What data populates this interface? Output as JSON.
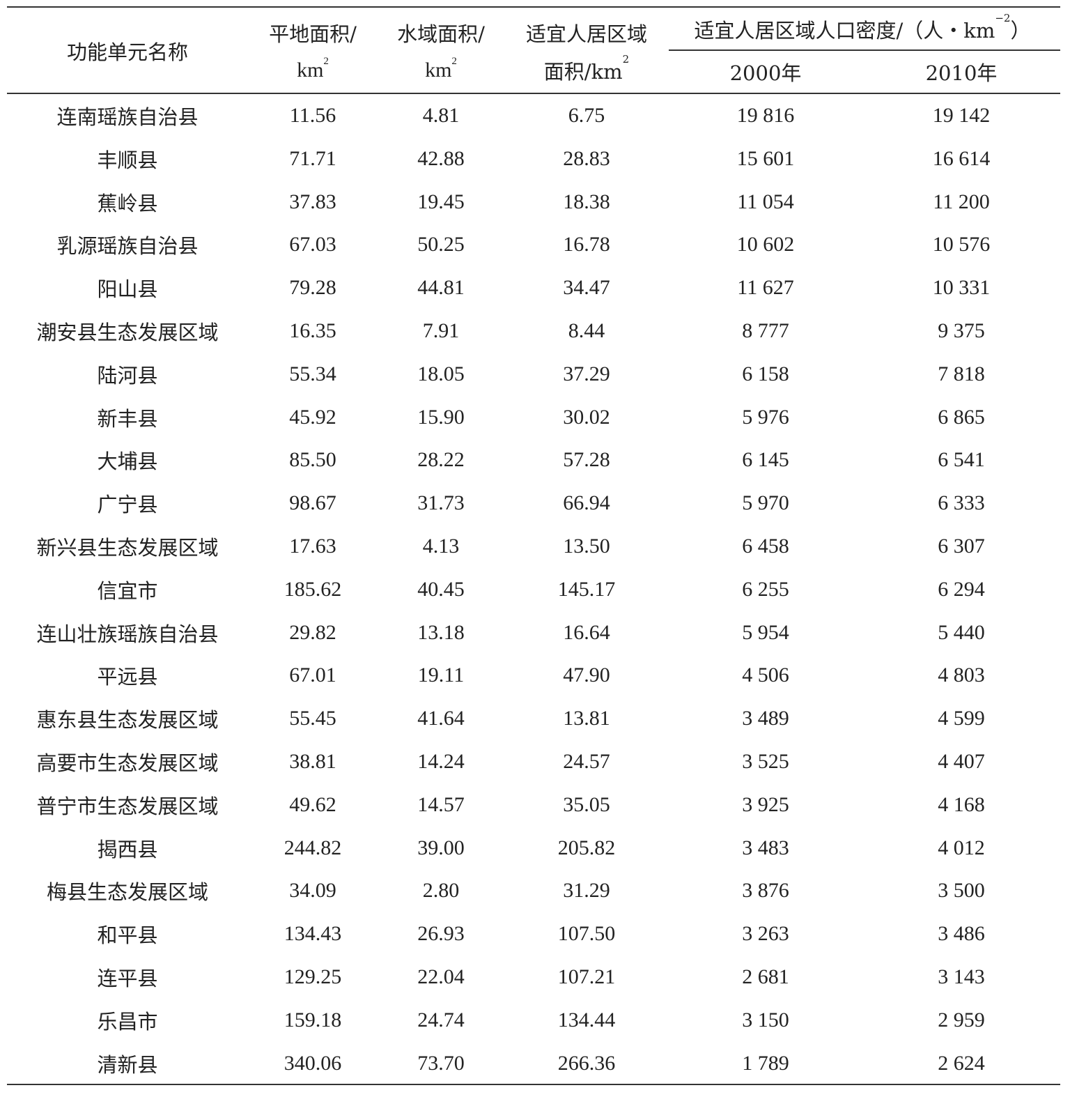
{
  "header": {
    "name_col": "功能单元名称",
    "flat_area": {
      "line1": "平地面积/",
      "unit": "km",
      "exp": "2"
    },
    "water_area": {
      "line1": "水域面积/",
      "unit": "km",
      "exp": "2"
    },
    "livable_area": {
      "line1": "适宜人居区域",
      "line2": "面积/km",
      "exp": "2"
    },
    "density_group": {
      "text": "适宜人居区域人口密度/（人・km",
      "exp": "−2",
      "close": "）"
    },
    "year_2000": "2000年",
    "year_2010": "2010年"
  },
  "rows": [
    [
      "连南瑶族自治县",
      "11.56",
      "4.81",
      "6.75",
      "19 816",
      "19 142"
    ],
    [
      "丰顺县",
      "71.71",
      "42.88",
      "28.83",
      "15 601",
      "16 614"
    ],
    [
      "蕉岭县",
      "37.83",
      "19.45",
      "18.38",
      "11 054",
      "11 200"
    ],
    [
      "乳源瑶族自治县",
      "67.03",
      "50.25",
      "16.78",
      "10 602",
      "10 576"
    ],
    [
      "阳山县",
      "79.28",
      "44.81",
      "34.47",
      "11 627",
      "10 331"
    ],
    [
      "潮安县生态发展区域",
      "16.35",
      "7.91",
      "8.44",
      "8 777",
      "9 375"
    ],
    [
      "陆河县",
      "55.34",
      "18.05",
      "37.29",
      "6 158",
      "7 818"
    ],
    [
      "新丰县",
      "45.92",
      "15.90",
      "30.02",
      "5 976",
      "6 865"
    ],
    [
      "大埔县",
      "85.50",
      "28.22",
      "57.28",
      "6 145",
      "6 541"
    ],
    [
      "广宁县",
      "98.67",
      "31.73",
      "66.94",
      "5 970",
      "6 333"
    ],
    [
      "新兴县生态发展区域",
      "17.63",
      "4.13",
      "13.50",
      "6 458",
      "6 307"
    ],
    [
      "信宜市",
      "185.62",
      "40.45",
      "145.17",
      "6 255",
      "6 294"
    ],
    [
      "连山壮族瑶族自治县",
      "29.82",
      "13.18",
      "16.64",
      "5 954",
      "5 440"
    ],
    [
      "平远县",
      "67.01",
      "19.11",
      "47.90",
      "4 506",
      "4 803"
    ],
    [
      "惠东县生态发展区域",
      "55.45",
      "41.64",
      "13.81",
      "3 489",
      "4 599"
    ],
    [
      "高要市生态发展区域",
      "38.81",
      "14.24",
      "24.57",
      "3 525",
      "4 407"
    ],
    [
      "普宁市生态发展区域",
      "49.62",
      "14.57",
      "35.05",
      "3 925",
      "4 168"
    ],
    [
      "揭西县",
      "244.82",
      "39.00",
      "205.82",
      "3 483",
      "4 012"
    ],
    [
      "梅县生态发展区域",
      "34.09",
      "2.80",
      "31.29",
      "3 876",
      "3 500"
    ],
    [
      "和平县",
      "134.43",
      "26.93",
      "107.50",
      "3 263",
      "3 486"
    ],
    [
      "连平县",
      "129.25",
      "22.04",
      "107.21",
      "2 681",
      "3 143"
    ],
    [
      "乐昌市",
      "159.18",
      "24.74",
      "134.44",
      "3 150",
      "2 959"
    ],
    [
      "清新县",
      "340.06",
      "73.70",
      "266.36",
      "1 789",
      "2 624"
    ]
  ]
}
